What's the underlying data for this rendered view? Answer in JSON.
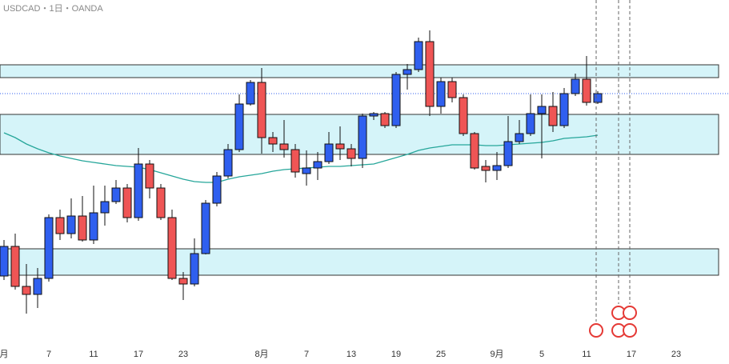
{
  "chart_data": {
    "type": "candlestick",
    "title": "USDCAD・1日・OANDA",
    "categories": [
      "月",
      null,
      null,
      null,
      "7",
      null,
      null,
      null,
      "11",
      null,
      null,
      null,
      "17",
      null,
      null,
      null,
      "23",
      null,
      null,
      null,
      null,
      null,
      null,
      "8月",
      null,
      null,
      null,
      "7",
      null,
      null,
      null,
      "13",
      null,
      null,
      null,
      "19",
      null,
      null,
      null,
      "25",
      null,
      null,
      null,
      null,
      "9月",
      null,
      null,
      null,
      "5",
      null,
      null,
      null,
      "11",
      null,
      null,
      null,
      "17",
      null,
      null,
      null,
      "23"
    ],
    "open": [
      110,
      147,
      97,
      87,
      107,
      183,
      163,
      185,
      155,
      189,
      203,
      220,
      183,
      250,
      220,
      183,
      107,
      100,
      138,
      201,
      235,
      268,
      325,
      352,
      283,
      275,
      268,
      238,
      245,
      253,
      275,
      269,
      257,
      310,
      313,
      298,
      362,
      368,
      403,
      322,
      353,
      333,
      288,
      247,
      242,
      248,
      278,
      288,
      313,
      322,
      298,
      338,
      356,
      327,
      null,
      null,
      null,
      null,
      null,
      null,
      null
    ],
    "high": [
      155,
      163,
      125,
      120,
      187,
      193,
      207,
      210,
      223,
      223,
      230,
      225,
      270,
      255,
      225,
      193,
      115,
      157,
      205,
      240,
      275,
      337,
      355,
      370,
      290,
      305,
      275,
      267,
      265,
      290,
      297,
      275,
      313,
      315,
      315,
      365,
      375,
      408,
      417,
      358,
      358,
      337,
      290,
      255,
      265,
      310,
      305,
      337,
      337,
      340,
      345,
      363,
      385,
      341,
      null,
      null,
      null,
      null,
      null,
      null,
      null
    ],
    "low": [
      105,
      93,
      63,
      70,
      103,
      155,
      157,
      153,
      150,
      173,
      200,
      177,
      179,
      207,
      180,
      105,
      80,
      97,
      137,
      197,
      232,
      265,
      323,
      263,
      265,
      258,
      233,
      223,
      230,
      250,
      255,
      247,
      245,
      305,
      295,
      295,
      343,
      365,
      310,
      313,
      327,
      285,
      243,
      227,
      230,
      245,
      275,
      285,
      257,
      290,
      295,
      335,
      323,
      325,
      null,
      null,
      null,
      null,
      null,
      null,
      null
    ],
    "close": [
      147,
      97,
      87,
      107,
      183,
      163,
      185,
      155,
      189,
      203,
      220,
      183,
      250,
      220,
      183,
      107,
      100,
      138,
      201,
      235,
      268,
      325,
      352,
      283,
      275,
      268,
      240,
      245,
      253,
      275,
      269,
      257,
      310,
      313,
      298,
      362,
      368,
      403,
      322,
      353,
      333,
      288,
      245,
      242,
      248,
      278,
      288,
      313,
      322,
      298,
      338,
      356,
      327,
      338,
      null,
      null,
      null,
      null,
      null,
      null,
      null
    ],
    "moving_average": {
      "color": "#26a69a",
      "values": [
        289,
        283,
        275,
        269,
        264,
        260,
        257,
        254,
        252,
        250,
        248,
        247,
        246,
        243,
        239,
        235,
        231,
        228,
        227,
        227,
        231,
        234,
        236,
        238,
        241,
        243,
        244,
        245,
        246,
        247,
        247,
        248,
        249,
        250,
        254,
        258,
        262,
        267,
        270,
        272,
        274,
        274,
        274,
        273,
        273,
        274,
        275,
        276,
        277,
        279,
        282,
        283,
        284,
        286,
        null,
        null,
        null,
        null,
        null,
        null,
        null
      ]
    },
    "zones": [
      {
        "top": 374,
        "bottom": 358
      },
      {
        "top": 312,
        "bottom": 262
      },
      {
        "top": 144,
        "bottom": 111
      }
    ],
    "zone_color": "#d5f4f9",
    "price_line": 338,
    "up_color": "#2f5fef",
    "down_color": "#ef5555",
    "ylim": [
      0,
      455
    ]
  }
}
